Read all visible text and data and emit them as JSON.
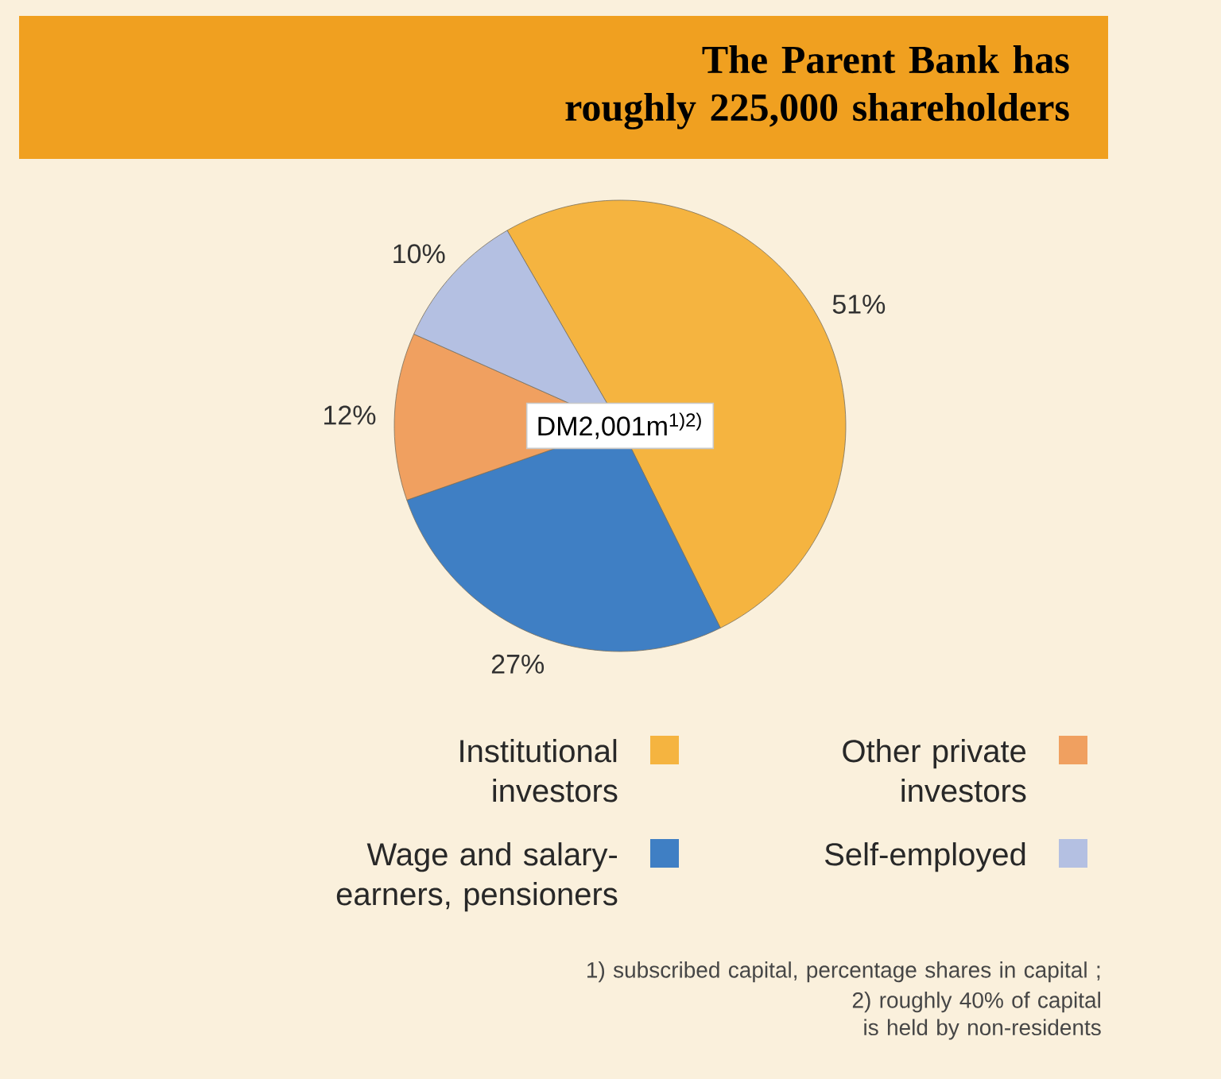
{
  "chart_data": {
    "type": "pie",
    "title": "The Parent Bank has roughly 225,000 shareholders",
    "categories": [
      "Institutional investors",
      "Wage and salary-earners, pensioners",
      "Other private investors",
      "Self-employed"
    ],
    "values": [
      51,
      27,
      12,
      10
    ],
    "value_labels": [
      "51%",
      "27%",
      "12%",
      "10%"
    ],
    "colors": [
      "#f5b440",
      "#3f7fc4",
      "#f0a060",
      "#b4c0e2"
    ],
    "legend": "bottom",
    "annotations": [
      "DM2,001m$^{1)2)}$",
      "1) subscribed capital, percentage shares in capital ;",
      "2) roughly 40% of capital is held by non-residents"
    ]
  }
}
